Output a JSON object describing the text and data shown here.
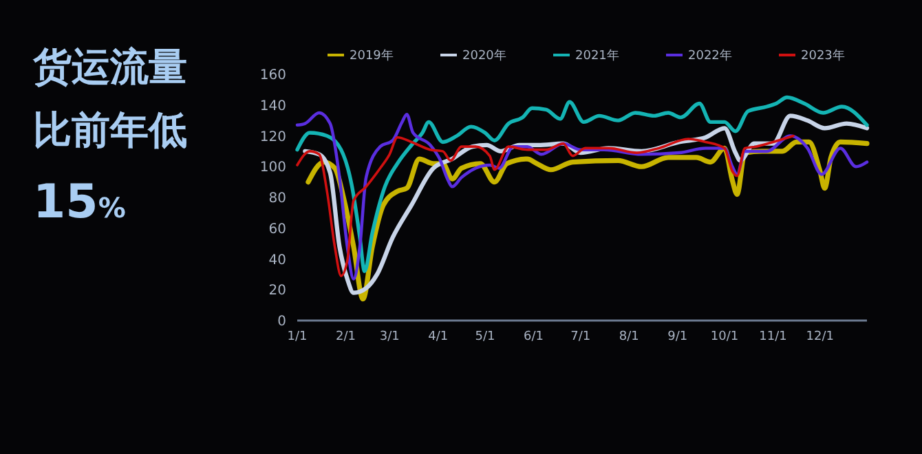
{
  "chart_data": [
    {
      "type": "other",
      "annotations": [
        "货运流量",
        "比前年低",
        "15%"
      ]
    },
    {
      "type": "line",
      "legend": "top",
      "grid": false,
      "marker": "none",
      "line_style": "solid",
      "ylim": [
        0,
        160
      ],
      "yticks": [
        0,
        20,
        40,
        60,
        80,
        100,
        120,
        140,
        160
      ],
      "xlim": [
        "--01-01",
        "--12-31"
      ],
      "xticks": [
        {
          "value": "--01-01",
          "label": "1/1"
        },
        {
          "value": "--02-01",
          "label": "2/1"
        },
        {
          "value": "--03-01",
          "label": "3/1"
        },
        {
          "value": "--04-01",
          "label": "4/1"
        },
        {
          "value": "--05-01",
          "label": "5/1"
        },
        {
          "value": "--06-01",
          "label": "6/1"
        },
        {
          "value": "--07-01",
          "label": "7/1"
        },
        {
          "value": "--08-01",
          "label": "8/1"
        },
        {
          "value": "--09-01",
          "label": "9/1"
        },
        {
          "value": "--10-01",
          "label": "10/1"
        },
        {
          "value": "--11-01",
          "label": "11/1"
        },
        {
          "value": "--12-01",
          "label": "12/1"
        }
      ],
      "series": [
        {
          "name": "2019年",
          "color": "#c8b400",
          "x": [
            "--01-08",
            "--01-18",
            "--01-25",
            "--01-31",
            "--02-06",
            "--02-12",
            "--02-18",
            "--02-25",
            "--03-06",
            "--03-12",
            "--03-20",
            "--03-29",
            "--04-04",
            "--04-10",
            "--04-16",
            "--04-28",
            "--05-07",
            "--05-15",
            "--05-28",
            "--06-03",
            "--06-12",
            "--06-26",
            "--07-25",
            "--08-09",
            "--08-26",
            "--09-13",
            "--09-22",
            "--10-01",
            "--10-06",
            "--10-09",
            "--10-14",
            "--10-25",
            "--11-07",
            "--11-16",
            "--11-24",
            "--12-01",
            "--12-04",
            "--12-08",
            "--12-14",
            "--12-31"
          ],
          "values": [
            90,
            103,
            99,
            78,
            48,
            14,
            48,
            75,
            84,
            86,
            105,
            102,
            102,
            92,
            99,
            102,
            90,
            102,
            105,
            102,
            98,
            103,
            104,
            100,
            106,
            106,
            103,
            112,
            91,
            82,
            109,
            110,
            110,
            116,
            116,
            97,
            86,
            106,
            116,
            115
          ]
        },
        {
          "name": "2020年",
          "color": "#c8d4e8",
          "x": [
            "--01-06",
            "--01-15",
            "--01-22",
            "--01-28",
            "--02-02",
            "--02-06",
            "--02-14",
            "--02-21",
            "--03-03",
            "--03-15",
            "--03-29",
            "--04-10",
            "--04-23",
            "--05-02",
            "--05-11",
            "--05-23",
            "--06-04",
            "--06-20",
            "--07-01",
            "--07-19",
            "--08-09",
            "--09-02",
            "--09-19",
            "--10-01",
            "--10-08",
            "--10-11",
            "--10-20",
            "--11-01",
            "--11-12",
            "--11-23",
            "--12-04",
            "--12-18",
            "--12-31"
          ],
          "values": [
            110,
            108,
            96,
            48,
            27,
            18,
            21,
            30,
            54,
            75,
            99,
            105,
            113,
            114,
            110,
            114,
            114,
            115,
            109,
            112,
            110,
            116,
            119,
            125,
            109,
            104,
            115,
            115,
            133,
            130,
            125,
            128,
            125
          ]
        },
        {
          "name": "2021年",
          "color": "#14b4b4",
          "x": [
            "--01-01",
            "--01-09",
            "--01-20",
            "--01-29",
            "--02-05",
            "--02-10",
            "--02-13",
            "--02-18",
            "--02-26",
            "--03-06",
            "--03-15",
            "--03-22",
            "--03-26",
            "--04-04",
            "--04-13",
            "--04-22",
            "--05-01",
            "--05-07",
            "--05-16",
            "--05-25",
            "--05-31",
            "--06-09",
            "--06-18",
            "--06-24",
            "--07-03",
            "--07-13",
            "--07-25",
            "--08-05",
            "--08-17",
            "--08-26",
            "--09-03",
            "--09-15",
            "--09-22",
            "--10-01",
            "--10-08",
            "--10-16",
            "--10-28",
            "--11-03",
            "--11-10",
            "--11-21",
            "--12-03",
            "--12-15",
            "--12-31"
          ],
          "values": [
            111,
            122,
            120,
            111,
            87,
            54,
            32,
            57,
            87,
            102,
            114,
            122,
            129,
            116,
            120,
            126,
            122,
            117,
            128,
            132,
            138,
            137,
            131,
            142,
            129,
            133,
            130,
            135,
            133,
            135,
            132,
            141,
            129,
            129,
            123,
            136,
            139,
            141,
            145,
            141,
            135,
            139,
            127
          ]
        },
        {
          "name": "2022年",
          "color": "#5a2ee0",
          "x": [
            "--01-01",
            "--01-06",
            "--01-15",
            "--01-22",
            "--01-28",
            "--02-02",
            "--02-06",
            "--02-10",
            "--02-14",
            "--02-23",
            "--03-03",
            "--03-09",
            "--03-12",
            "--03-16",
            "--03-27",
            "--04-02",
            "--04-07",
            "--04-10",
            "--04-16",
            "--04-25",
            "--05-04",
            "--05-10",
            "--05-19",
            "--05-28",
            "--06-06",
            "--06-20",
            "--07-01",
            "--07-16",
            "--08-09",
            "--09-02",
            "--09-19",
            "--10-01",
            "--10-06",
            "--10-09",
            "--10-14",
            "--10-28",
            "--11-12",
            "--11-23",
            "--12-02",
            "--12-14",
            "--12-24",
            "--12-31"
          ],
          "values": [
            127,
            128,
            135,
            128,
            93,
            48,
            27,
            48,
            93,
            113,
            117,
            129,
            134,
            122,
            114,
            105,
            92,
            87,
            93,
            99,
            101,
            99,
            113,
            113,
            108,
            115,
            111,
            111,
            108,
            109,
            112,
            112,
            100,
            95,
            110,
            110,
            120,
            112,
            95,
            112,
            100,
            103
          ]
        },
        {
          "name": "2023年",
          "color": "#d01010",
          "x": [
            "--01-01",
            "--01-09",
            "--01-15",
            "--01-20",
            "--01-25",
            "--01-29",
            "--02-02",
            "--02-06",
            "--02-14",
            "--02-23",
            "--03-01",
            "--03-06",
            "--03-15",
            "--03-27",
            "--04-04",
            "--04-09",
            "--04-16",
            "--04-25",
            "--05-04",
            "--05-07",
            "--05-16",
            "--05-28",
            "--06-09",
            "--06-20",
            "--06-26",
            "--07-04",
            "--07-19",
            "--08-06",
            "--08-20",
            "--09-08",
            "--09-19",
            "--10-01",
            "--10-06",
            "--10-09",
            "--10-14",
            "--10-21",
            "--11-01",
            "--11-14"
          ],
          "values": [
            101,
            110,
            108,
            84,
            48,
            29,
            39,
            78,
            87,
            99,
            108,
            119,
            116,
            111,
            110,
            104,
            113,
            113,
            107,
            98,
            113,
            111,
            111,
            115,
            107,
            112,
            112,
            109,
            112,
            118,
            116,
            112,
            97,
            94,
            112,
            113,
            116,
            120
          ]
        }
      ]
    }
  ]
}
